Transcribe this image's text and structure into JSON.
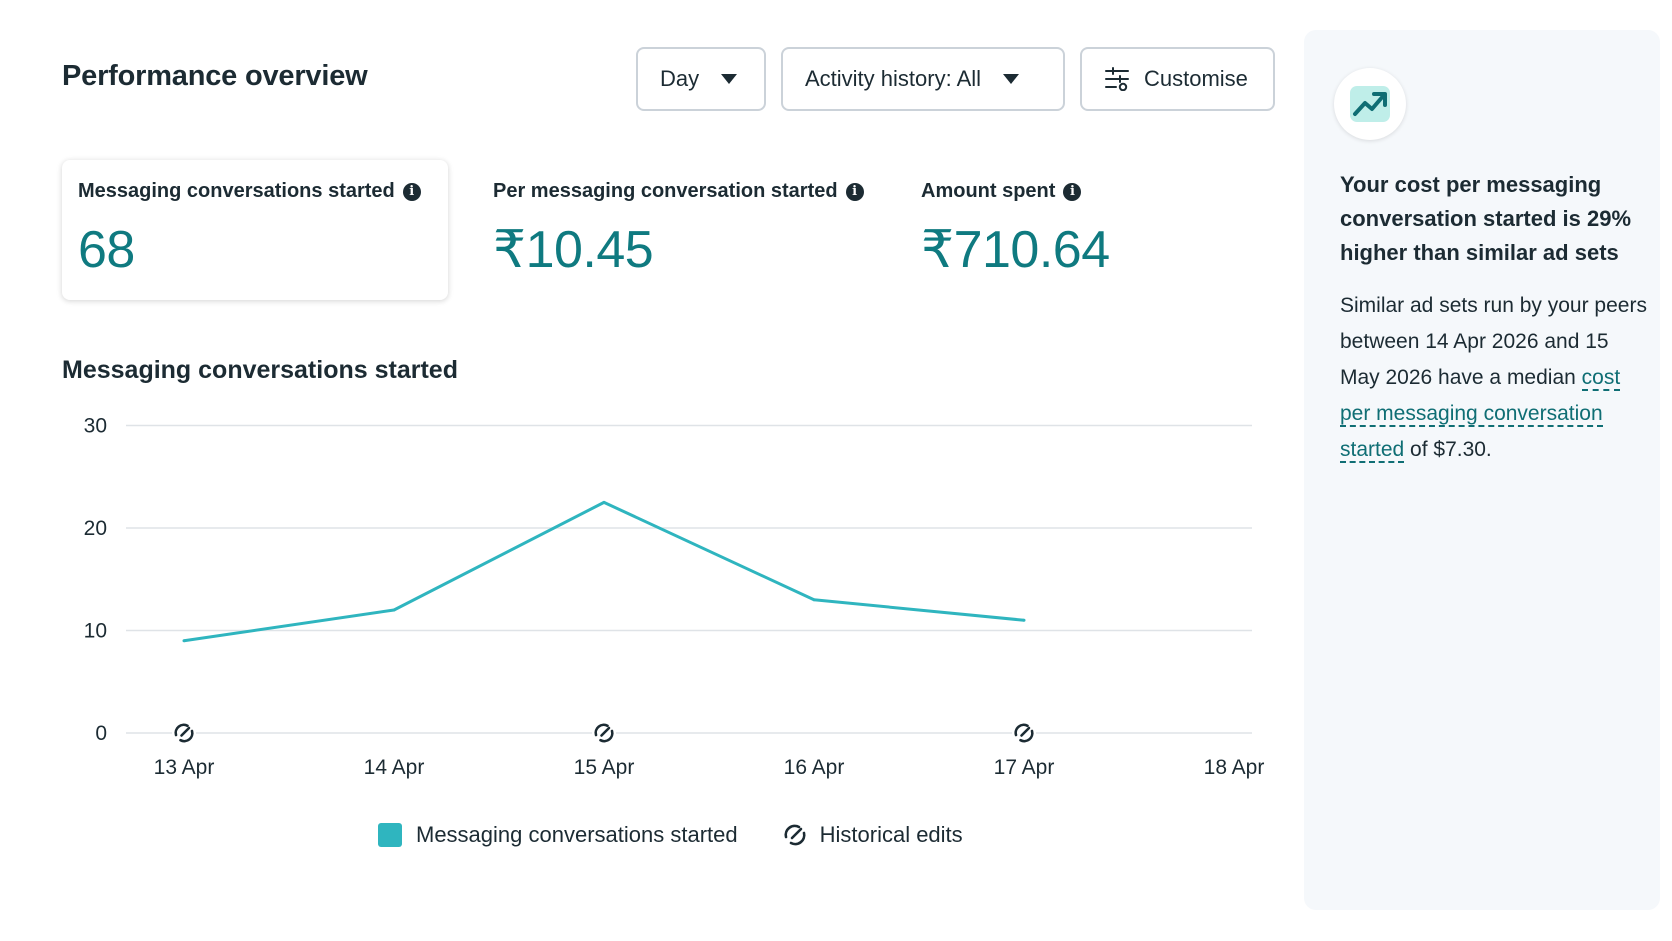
{
  "header": {
    "title": "Performance overview",
    "day_select": "Day",
    "activity_select": "Activity history: All",
    "customise_label": "Customise"
  },
  "metrics": [
    {
      "label": "Messaging conversations started",
      "value": "68"
    },
    {
      "label": "Per messaging conversation started",
      "value": "₹10.45"
    },
    {
      "label": "Amount spent",
      "value": "₹710.64"
    }
  ],
  "chart_data": {
    "type": "line",
    "title": "Messaging conversations started",
    "categories": [
      "13 Apr",
      "14 Apr",
      "15 Apr",
      "16 Apr",
      "17 Apr",
      "18 Apr"
    ],
    "series": [
      {
        "name": "Messaging conversations started",
        "values": [
          9,
          12,
          22.5,
          13,
          11,
          null
        ],
        "color": "#2fb5bf"
      }
    ],
    "y_ticks": [
      0,
      10,
      20,
      30
    ],
    "ylim": [
      0,
      30
    ],
    "grid": true,
    "historical_edits": [
      "13 Apr",
      "15 Apr",
      "17 Apr"
    ],
    "legend": [
      {
        "label": "Messaging conversations started",
        "kind": "swatch"
      },
      {
        "label": "Historical edits",
        "kind": "edit-icon"
      }
    ]
  },
  "insight": {
    "icon": "trend-up-icon",
    "title": "Your cost per messaging conversation started is 29% higher than similar ad sets",
    "body_prefix": "Similar ad sets run by your peers between 14 Apr 2026 and 15 May 2026 have a median ",
    "link_text": "cost per messaging conversation started",
    "body_suffix": " of $7.30."
  }
}
